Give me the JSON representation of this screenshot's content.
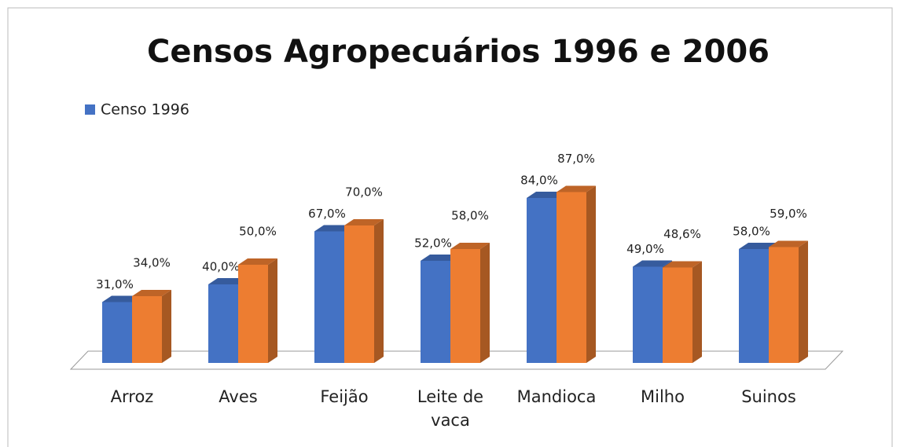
{
  "chart_data": {
    "type": "bar3d",
    "title": "Censos Agropecuários 1996 e 2006",
    "categories": [
      "Arroz",
      "Aves",
      "Feijão",
      "Leite de vaca",
      "Mandioca",
      "Milho",
      "Suinos"
    ],
    "series": [
      {
        "name": "Censo 1996",
        "color": "#4472c4",
        "values": [
          31,
          40,
          67,
          52,
          84,
          49,
          58
        ],
        "value_labels": [
          "31,0%",
          "40,0%",
          "67,0%",
          "52,0%",
          "84,0%",
          "49,0%",
          "58,0%"
        ]
      },
      {
        "color": "#ed7d31",
        "values": [
          34,
          50,
          70,
          58,
          87,
          48.6,
          59
        ],
        "value_labels": [
          "34,0%",
          "50,0%",
          "70,0%",
          "58,0%",
          "87,0%",
          "48,6%",
          "59,0%"
        ]
      }
    ]
  }
}
